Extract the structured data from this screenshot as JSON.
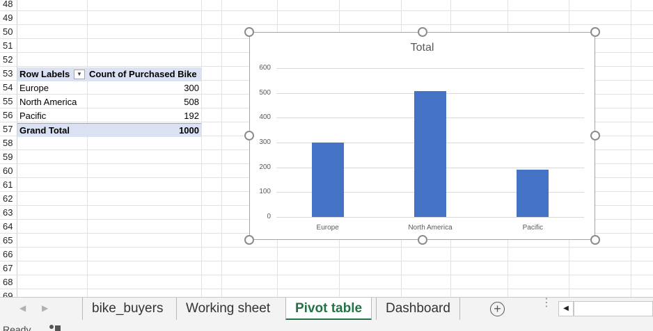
{
  "grid": {
    "row_numbers": [
      "48",
      "49",
      "50",
      "51",
      "52",
      "53",
      "54",
      "55",
      "56",
      "57",
      "58",
      "59",
      "60",
      "61",
      "62",
      "63",
      "64",
      "65",
      "66",
      "67",
      "68",
      "69"
    ]
  },
  "pivot": {
    "header": {
      "row_labels": "Row Labels",
      "count_label": "Count of Purchased Bike"
    },
    "rows": [
      {
        "label": "Europe",
        "value": "300"
      },
      {
        "label": "North America",
        "value": "508"
      },
      {
        "label": "Pacific",
        "value": "192"
      }
    ],
    "total": {
      "label": "Grand Total",
      "value": "1000"
    }
  },
  "chart_data": {
    "type": "bar",
    "title": "Total",
    "categories": [
      "Europe",
      "North America",
      "Pacific"
    ],
    "values": [
      300,
      508,
      192
    ],
    "ylim": [
      0,
      600
    ],
    "yticks": [
      "0",
      "100",
      "200",
      "300",
      "400",
      "500",
      "600"
    ],
    "grid": true,
    "color": "#4472c4"
  },
  "tabs": {
    "items": [
      {
        "label": "bike_buyers",
        "active": false
      },
      {
        "label": "Working sheet",
        "active": false
      },
      {
        "label": "Pivot table",
        "active": true
      },
      {
        "label": "Dashboard",
        "active": false
      }
    ],
    "add_icon": "plus-circle-icon",
    "accent": "#217346"
  },
  "status": {
    "text": "Ready"
  }
}
